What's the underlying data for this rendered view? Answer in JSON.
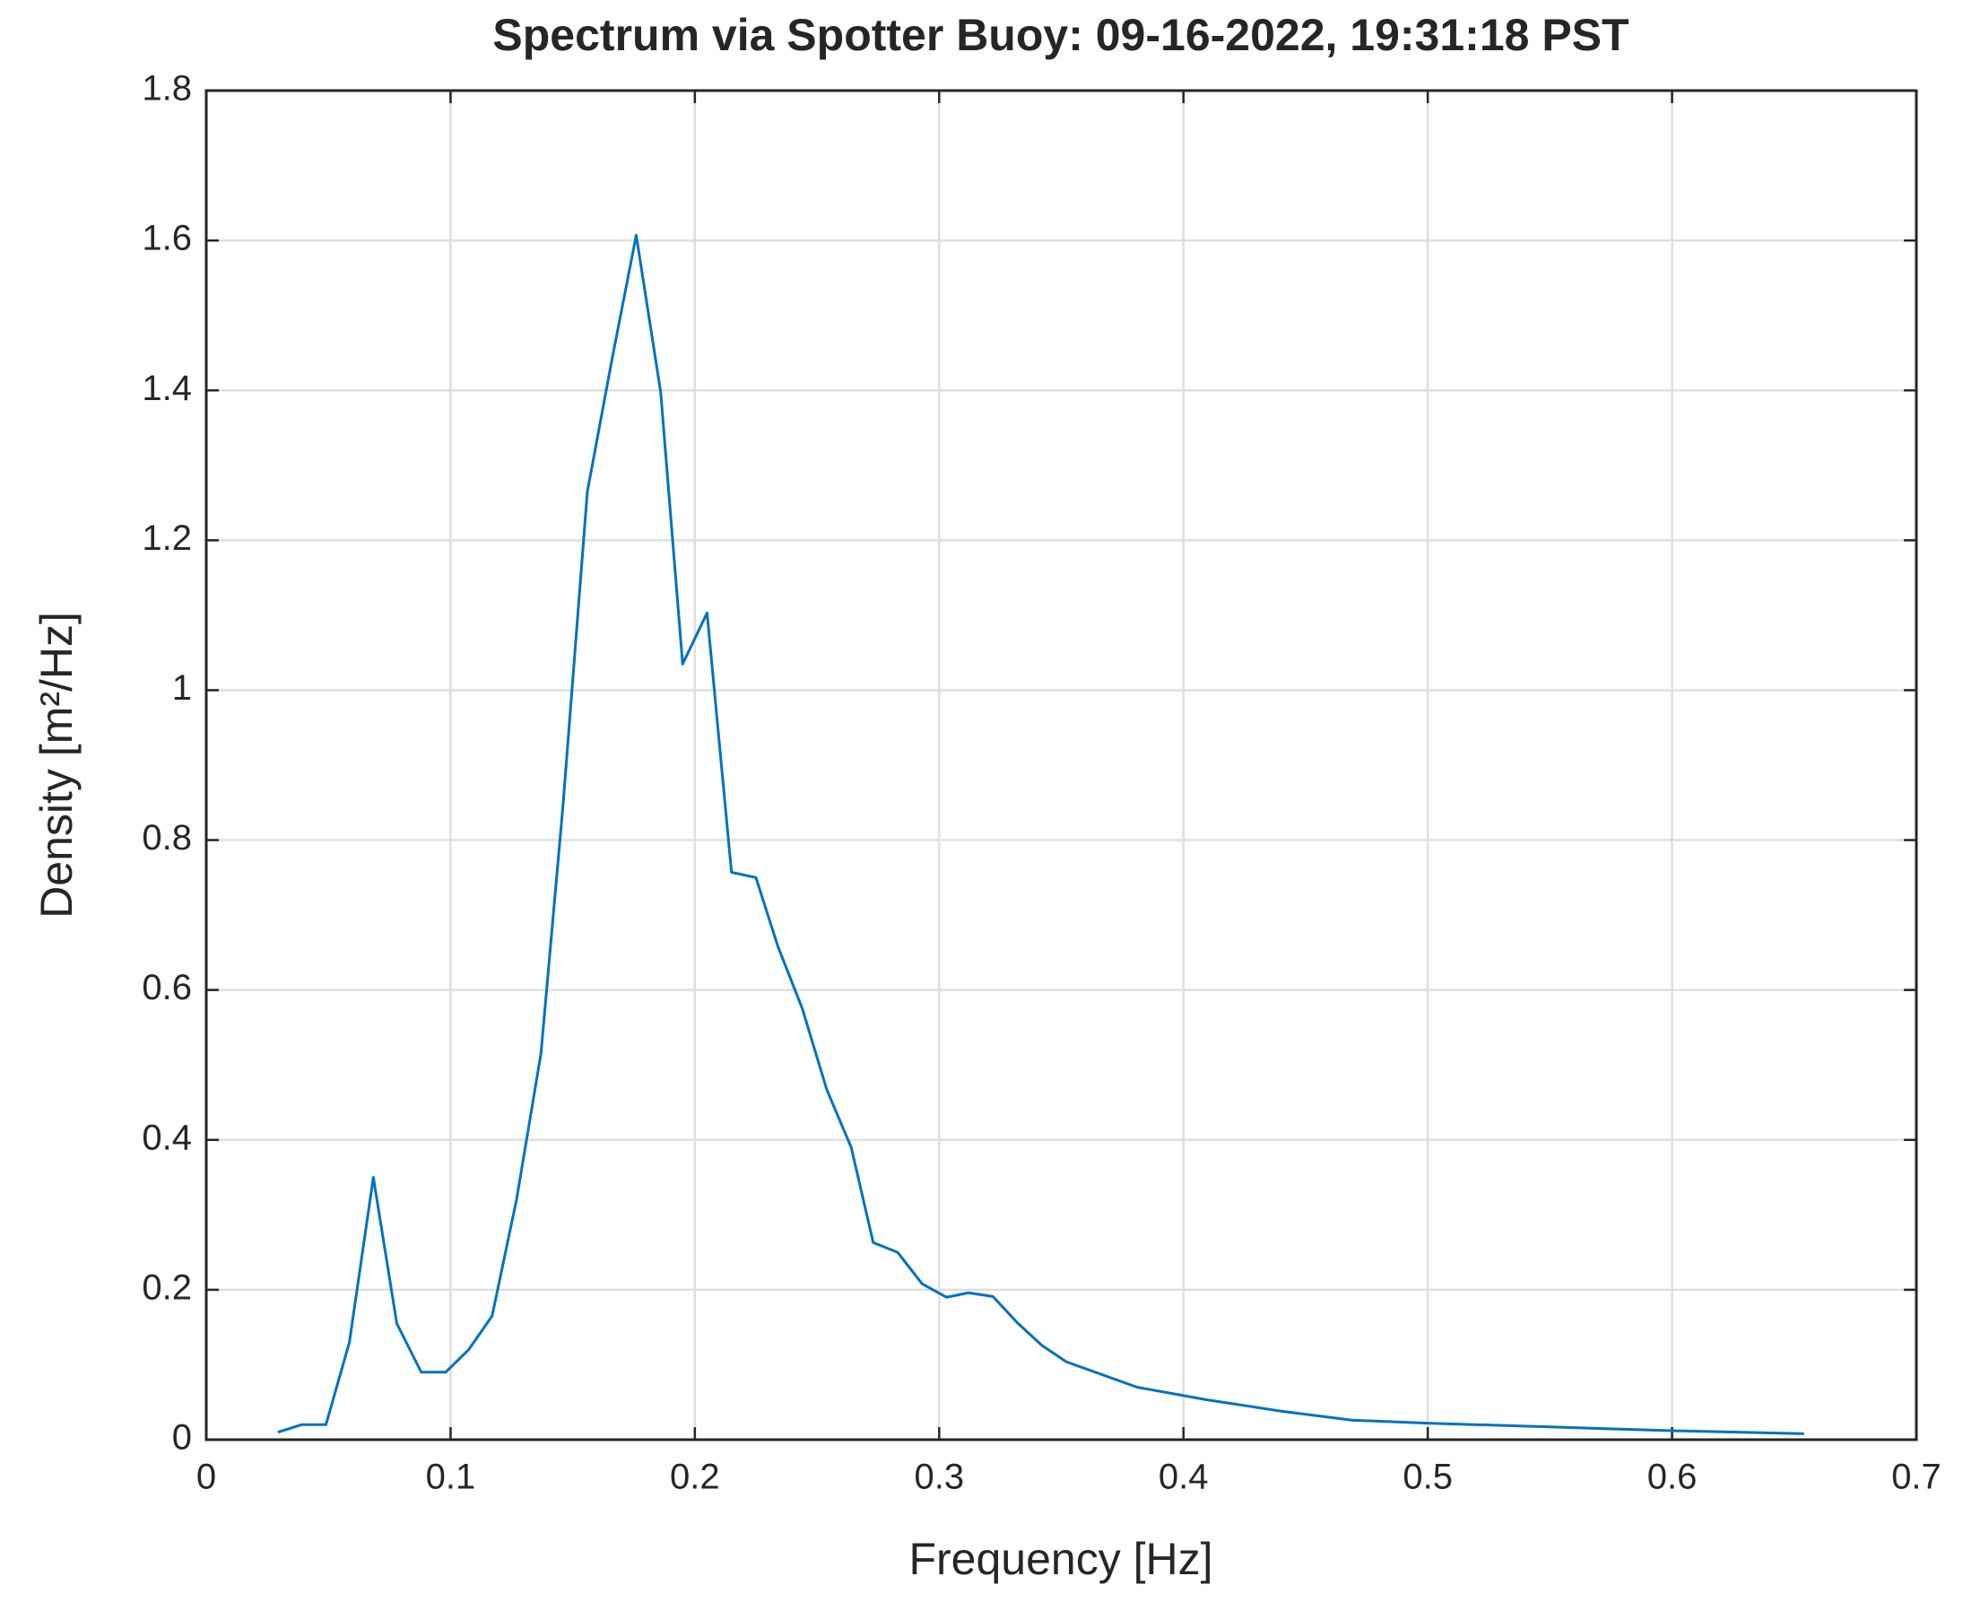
{
  "chart_data": {
    "type": "line",
    "title": "Spectrum via Spotter Buoy: 09-16-2022, 19:31:18 PST",
    "xlabel": "Frequency [Hz]",
    "ylabel": "Density [m²/Hz]",
    "x": [
      0.0293,
      0.039,
      0.049,
      0.0586,
      0.0684,
      0.078,
      0.088,
      0.098,
      0.1074,
      0.117,
      0.127,
      0.137,
      0.146,
      0.156,
      0.166,
      0.176,
      0.186,
      0.195,
      0.205,
      0.215,
      0.225,
      0.234,
      0.244,
      0.254,
      0.264,
      0.273,
      0.283,
      0.293,
      0.303,
      0.312,
      0.322,
      0.332,
      0.342,
      0.352,
      0.381,
      0.41,
      0.44,
      0.469,
      0.5,
      0.55,
      0.6,
      0.654
    ],
    "series": [
      {
        "color": "#0072bd",
        "values": [
          0.01,
          0.02,
          0.02,
          0.13,
          0.35,
          0.155,
          0.09,
          0.09,
          0.12,
          0.165,
          0.32,
          0.515,
          0.845,
          1.265,
          1.44,
          1.607,
          1.398,
          1.035,
          1.103,
          0.757,
          0.75,
          0.658,
          0.575,
          0.467,
          0.39,
          0.263,
          0.25,
          0.208,
          0.19,
          0.196,
          0.191,
          0.156,
          0.126,
          0.104,
          0.07,
          0.053,
          0.038,
          0.026,
          0.022,
          0.017,
          0.012,
          0.008
        ]
      }
    ],
    "xlim": [
      0,
      0.7
    ],
    "xticks": [
      0,
      0.1,
      0.2,
      0.3,
      0.4,
      0.5,
      0.6,
      0.7
    ],
    "ylim": [
      0,
      1.8
    ],
    "yticks": [
      0,
      0.2,
      0.4,
      0.6,
      0.8,
      1,
      1.2,
      1.4,
      1.6,
      1.8
    ],
    "grid": true
  }
}
